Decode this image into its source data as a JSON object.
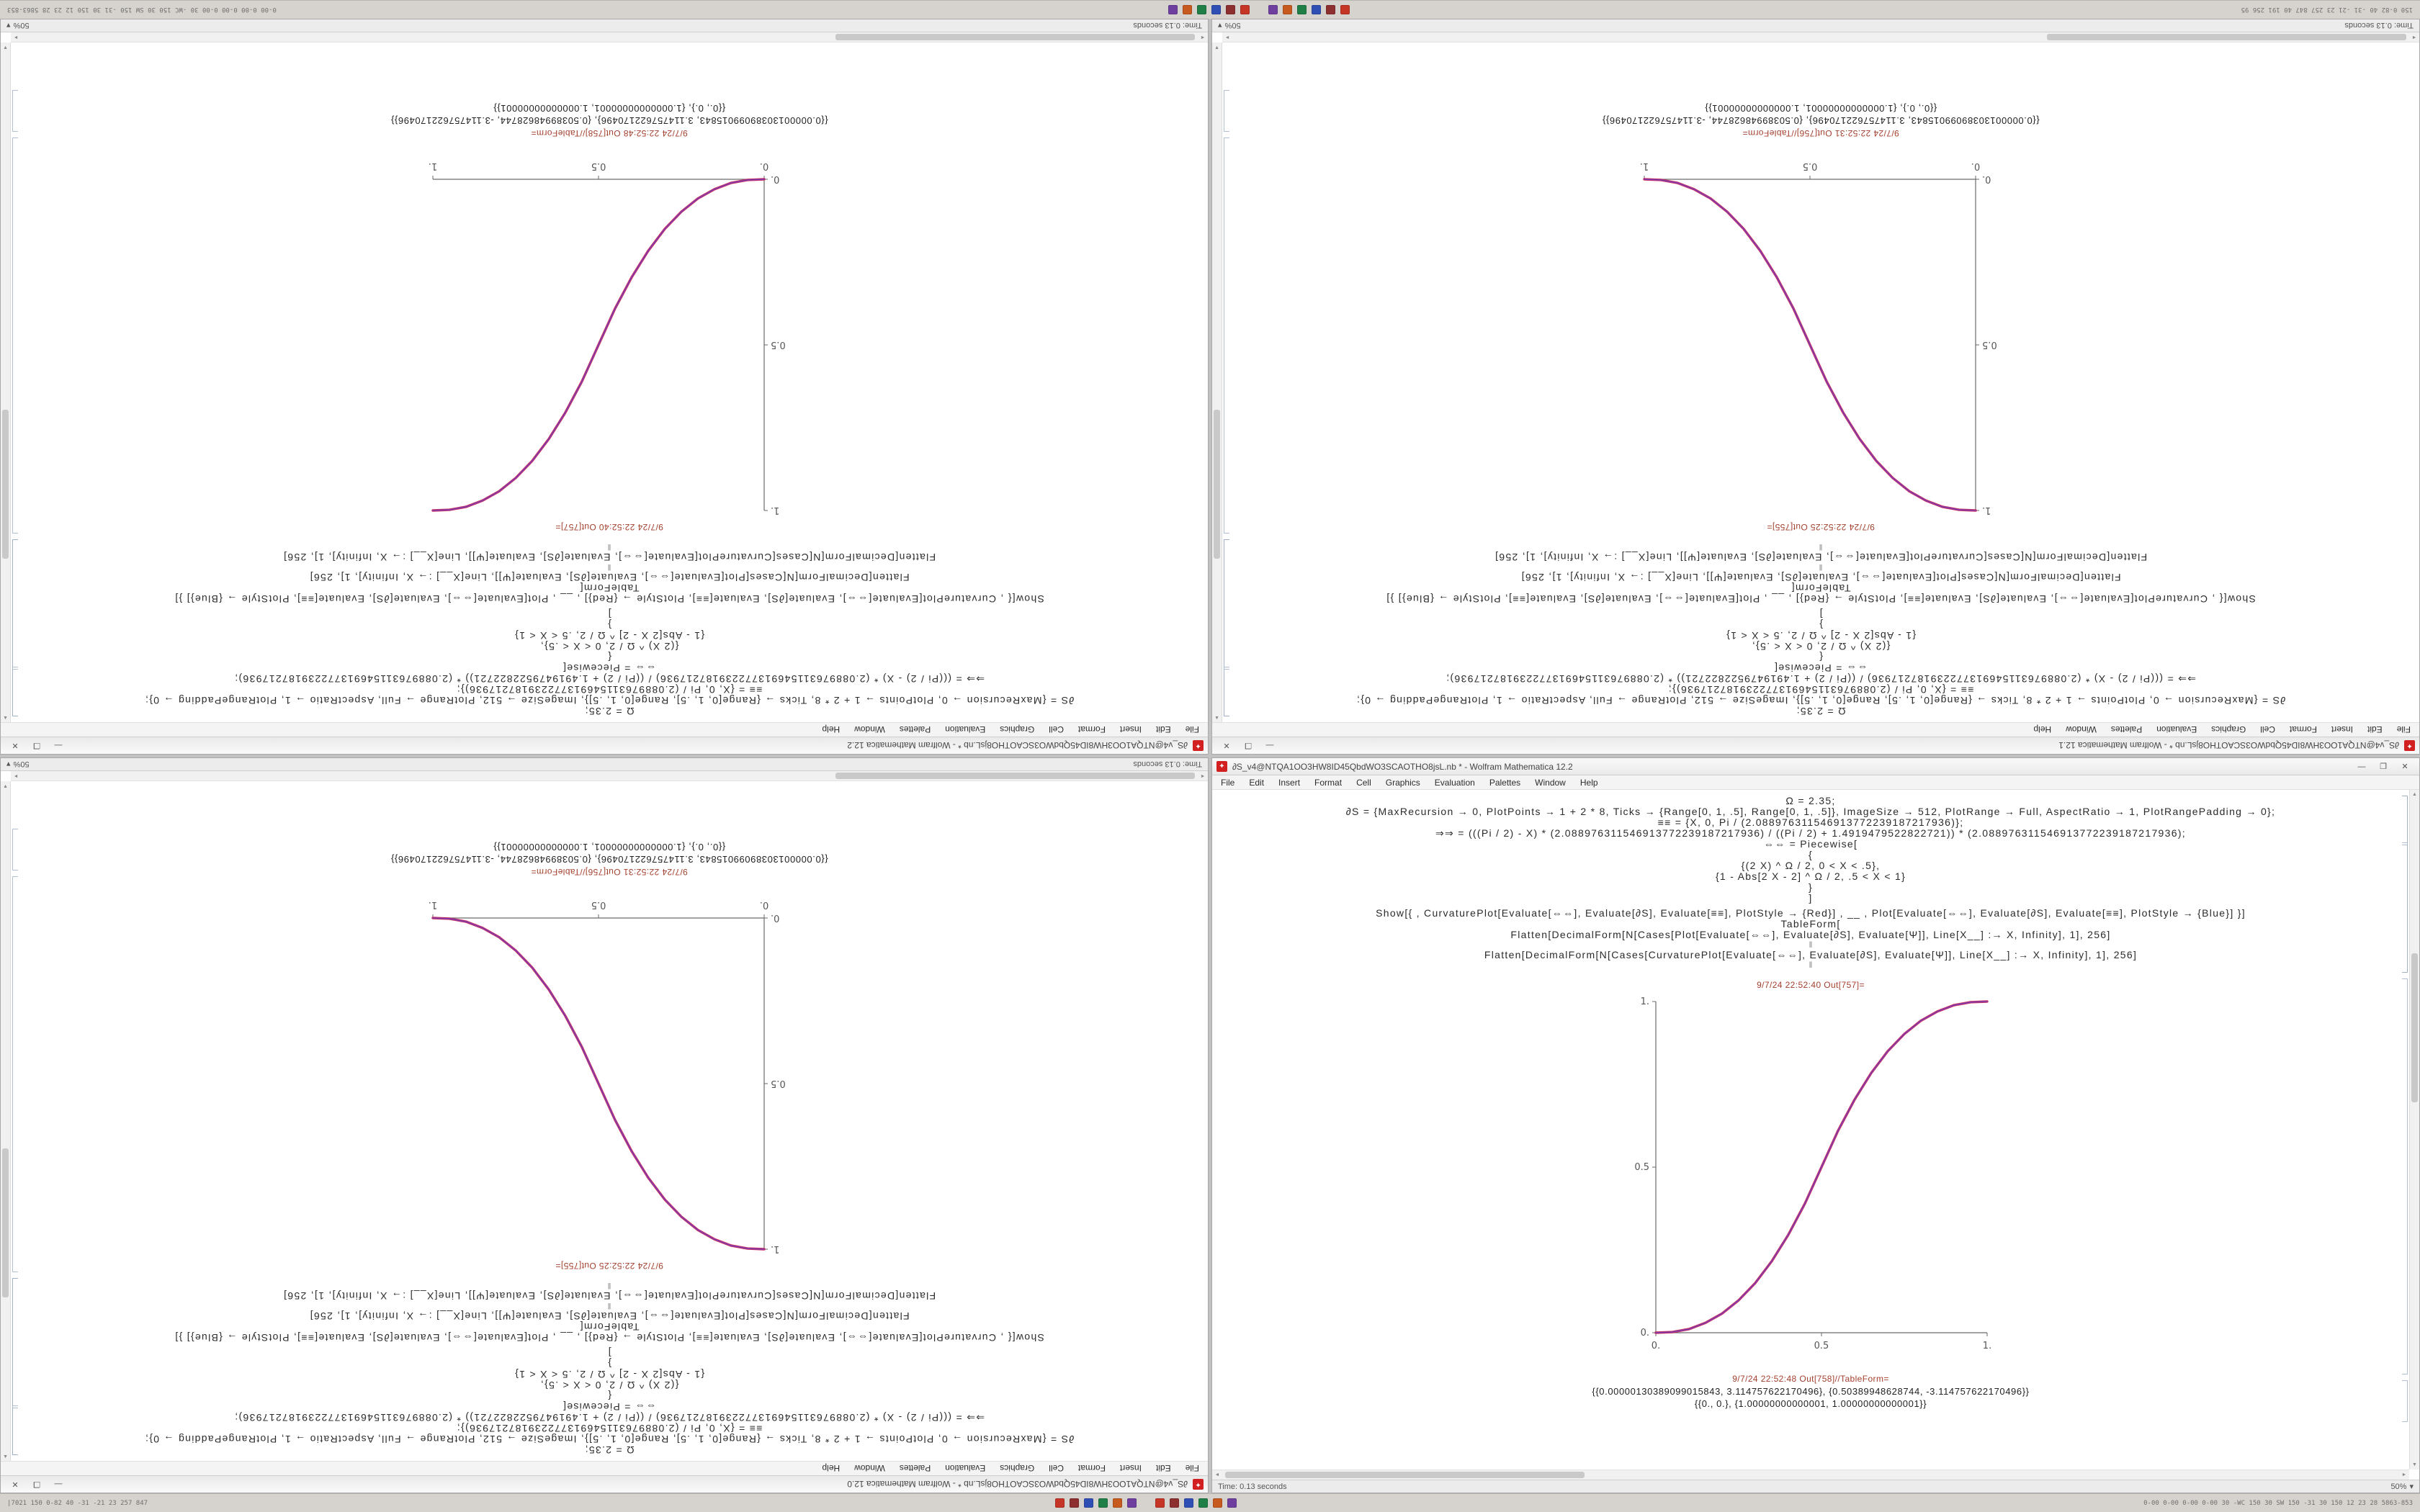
{
  "colors": {
    "accent_red": "#d21f1f",
    "out_label": "#a4402e",
    "curve_red": "#cc2255",
    "curve_blue": "#6a3fc0",
    "axis": "#6a6a6a",
    "tick_text": "#555555"
  },
  "icons": {
    "mathematica_glyph": "✦",
    "caret": "▾",
    "scroll_up": "▲",
    "scroll_down": "▼",
    "scroll_left": "◄",
    "scroll_right": "►"
  },
  "window_controls": {
    "minimize": "—",
    "maximize": "❐",
    "close": "✕"
  },
  "menu": [
    "File",
    "Edit",
    "Insert",
    "Format",
    "Cell",
    "Graphics",
    "Evaluation",
    "Palettes",
    "Window",
    "Help"
  ],
  "taskbar": {
    "left_text": "150 0-82 40 -31 -21 23 257 847 40 191 256 95",
    "right_text": "0-00 0-00 0-00 0-00 30 -WC 150 30 SW 150 -31 30 150 12 23 28 5863-853",
    "bottom_left_text": "|7021 150 0-82 40 -31 -21 23 257 847",
    "bottom_right_text": "0-00 0-00 0-00 0-00 30 -WC 150 30 SW 150 -31 30 150 12 23 28 5863-853",
    "icon_colors": [
      "#c63626",
      "#8e2f2f",
      "#2f4fb5",
      "#207f46",
      "#c65a1f",
      "#6f3fa0"
    ],
    "clusters": 2
  },
  "windows": [
    {
      "id": "top-left",
      "notebook": "a",
      "rotated": true,
      "title": "∂S_v4@NTQA1OO3HW8ID45QbdWO3SCAOTHO8jsL.nb * - Wolfram Mathematica 12.2"
    },
    {
      "id": "top-right",
      "notebook": "b",
      "rotated": true,
      "title": "∂S_v4@NTQA1OO3HW8ID45QbdWO3SCAOTHO8jsL.nb * - Wolfram Mathematica 12.1"
    },
    {
      "id": "bottom-left",
      "notebook": "b",
      "rotated": true,
      "title": "∂S_v4@NTQA1OO3HW8ID45QbdWO3SCAOTHO8jsL.nb * - Wolfram Mathematica 12.0"
    },
    {
      "id": "bottom-right",
      "notebook": "a",
      "rotated": false,
      "title": "∂S_v4@NTQA1OO3HW8ID45QbdWO3SCAOTHO8jsL.nb * - Wolfram Mathematica 12.2"
    }
  ],
  "notebooks": {
    "a": {
      "cells": [
        {
          "cls": "code",
          "text": "Ω = 2.35;"
        },
        {
          "cls": "code",
          "text": "∂S = {MaxRecursion → 0, PlotPoints → 1 + 2 * 8, Ticks → {Range[0, 1, .5], Range[0, 1, .5]}, ImageSize → 512, PlotRange → Full, AspectRatio → 1, PlotRangePadding → 0};"
        },
        {
          "cls": "code",
          "text": "≡≡ = {X, 0, Pi / (2.088976311546913772239187217936)};"
        },
        {
          "cls": "code",
          "text": "⇒⇒ = (((Pi / 2) - X) * (2.088976311546913772239187217936) / ((Pi / 2) + 1.4919479522822721)) * (2.088976311546913772239187217936);"
        },
        {
          "cls": "code",
          "text": "⇔⇔ = Piecewise["
        },
        {
          "cls": "code",
          "text": "{"
        },
        {
          "cls": "code",
          "text": "{(2 X) ^ Ω / 2, 0 < X < .5},"
        },
        {
          "cls": "code",
          "text": "{1 - Abs[2 X - 2] ^ Ω / 2, .5 < X < 1}"
        },
        {
          "cls": "code",
          "text": "}"
        },
        {
          "cls": "code",
          "text": "]"
        },
        {
          "cls": "code gap",
          "text": "Show[{ , CurvaturePlot[Evaluate[⇔⇔], Evaluate[∂S], Evaluate[≡≡], PlotStyle → {Red}] , __ , Plot[Evaluate[⇔⇔], Evaluate[∂S], Evaluate[≡≡], PlotStyle → {Blue}] }]"
        },
        {
          "cls": "code",
          "text": "TableForm["
        },
        {
          "cls": "code",
          "text": "Flatten[DecimalForm[N[Cases[Plot[Evaluate[⇔⇔], Evaluate[∂S], Evaluate[Ψ]], Line[X__] :→ X, Infinity], 1], 256]"
        },
        {
          "cls": "sep",
          "text": "‖"
        },
        {
          "cls": "code",
          "text": "Flatten[DecimalForm[N[Cases[CurvaturePlot[Evaluate[⇔⇔], Evaluate[∂S], Evaluate[Ψ]], Line[X__] :→ X, Infinity], 1], 256]"
        },
        {
          "cls": "sep",
          "text": "‖"
        }
      ],
      "plot_out_label": "9/7/24 22:52:40 Out[757]=",
      "table_out_label": "9/7/24 22:52:48 Out[758]//TableForm=",
      "table_rows": [
        "{{0.00000130389099015843, 3.114757622170496}, {0.50389948628744, -3.114757622170496}}",
        "{{0., 0.}, {1.00000000000001, 1.00000000000001}}"
      ],
      "status_left": "Time: 0.13 seconds",
      "zoom_value": "50%",
      "plot": {
        "type": "line",
        "xticks": [
          "0.",
          "0.5",
          "1."
        ],
        "yticks": [
          "0.",
          "0.5",
          "1."
        ],
        "xlim": [
          0,
          1
        ],
        "ylim": [
          0,
          1
        ],
        "curve": [
          [
            0,
            0
          ],
          [
            0.05,
            0.002
          ],
          [
            0.1,
            0.011
          ],
          [
            0.15,
            0.03
          ],
          [
            0.2,
            0.058
          ],
          [
            0.25,
            0.098
          ],
          [
            0.3,
            0.15
          ],
          [
            0.35,
            0.216
          ],
          [
            0.4,
            0.296
          ],
          [
            0.45,
            0.39
          ],
          [
            0.5,
            0.5
          ],
          [
            0.55,
            0.61
          ],
          [
            0.6,
            0.704
          ],
          [
            0.65,
            0.784
          ],
          [
            0.7,
            0.85
          ],
          [
            0.75,
            0.902
          ],
          [
            0.8,
            0.942
          ],
          [
            0.85,
            0.97
          ],
          [
            0.9,
            0.989
          ],
          [
            0.95,
            0.998
          ],
          [
            1,
            1
          ]
        ]
      }
    },
    "b": {
      "cells": [
        {
          "cls": "code",
          "text": "Ω = 2.35;"
        },
        {
          "cls": "code",
          "text": "∂S = {MaxRecursion → 0, PlotPoints → 1 + 2 * 8, Ticks → {Range[0, 1, .5], Range[0, 1, .5]}, ImageSize → 512, PlotRange → Full, AspectRatio → 1, PlotRangePadding → 0};"
        },
        {
          "cls": "code",
          "text": "≡≡ = {X, 0, Pi / (2.088976311546913772239187217936)};"
        },
        {
          "cls": "code",
          "text": "⇒⇒ = (((Pi / 2) - X) * (2.088976311546913772239187217936) / ((Pi / 2) + 1.4919479522822721)) * (2.088976311546913772239187217936);"
        },
        {
          "cls": "code",
          "text": "⇔⇔ = Piecewise["
        },
        {
          "cls": "code",
          "text": "{"
        },
        {
          "cls": "code",
          "text": "{(2 X) ^ Ω / 2, 0 < X < .5},"
        },
        {
          "cls": "code",
          "text": "{1 - Abs[2 X - 2] ^ Ω / 2, .5 < X < 1}"
        },
        {
          "cls": "code",
          "text": "}"
        },
        {
          "cls": "code",
          "text": "]"
        },
        {
          "cls": "code gap",
          "text": "Show[{ , CurvaturePlot[Evaluate[⇔⇔], Evaluate[∂S], Evaluate[≡≡], PlotStyle → {Red}] , __ , Plot[Evaluate[⇔⇔], Evaluate[∂S], Evaluate[≡≡], PlotStyle → {Blue}] }]"
        },
        {
          "cls": "code",
          "text": "TableForm["
        },
        {
          "cls": "code",
          "text": "Flatten[DecimalForm[N[Cases[Plot[Evaluate[⇔⇔], Evaluate[∂S], Evaluate[Ψ]], Line[X__] :→ X, Infinity], 1], 256]"
        },
        {
          "cls": "sep",
          "text": "‖"
        },
        {
          "cls": "code",
          "text": "Flatten[DecimalForm[N[Cases[CurvaturePlot[Evaluate[⇔⇔], Evaluate[∂S], Evaluate[Ψ]], Line[X__] :→ X, Infinity], 1], 256]"
        },
        {
          "cls": "sep",
          "text": "‖"
        }
      ],
      "plot_out_label": "9/7/24 22:52:25 Out[755]=",
      "table_out_label": "9/7/24 22:52:31 Out[756]//TableForm=",
      "table_rows": [
        "{{0.00000130389099015843, 3.114757622170496}, {0.50389948628744, -3.114757622170496}}",
        "{{0., 0.}, {1.00000000000001, 1.00000000000001}}"
      ],
      "status_left": "Time: 0.13 seconds",
      "zoom_value": "50%",
      "plot": {
        "type": "line",
        "xticks": [
          "0.",
          "0.5",
          "1."
        ],
        "yticks": [
          "0.",
          "0.5",
          "1."
        ],
        "xlim": [
          0,
          1
        ],
        "ylim": [
          0,
          1
        ],
        "curve": [
          [
            0,
            1
          ],
          [
            0.05,
            0.998
          ],
          [
            0.1,
            0.989
          ],
          [
            0.15,
            0.97
          ],
          [
            0.2,
            0.942
          ],
          [
            0.25,
            0.902
          ],
          [
            0.3,
            0.85
          ],
          [
            0.35,
            0.784
          ],
          [
            0.4,
            0.704
          ],
          [
            0.45,
            0.61
          ],
          [
            0.5,
            0.5
          ],
          [
            0.55,
            0.39
          ],
          [
            0.6,
            0.296
          ],
          [
            0.65,
            0.216
          ],
          [
            0.7,
            0.15
          ],
          [
            0.75,
            0.098
          ],
          [
            0.8,
            0.058
          ],
          [
            0.85,
            0.03
          ],
          [
            0.9,
            0.011
          ],
          [
            0.95,
            0.002
          ],
          [
            1,
            0
          ]
        ]
      }
    }
  }
}
